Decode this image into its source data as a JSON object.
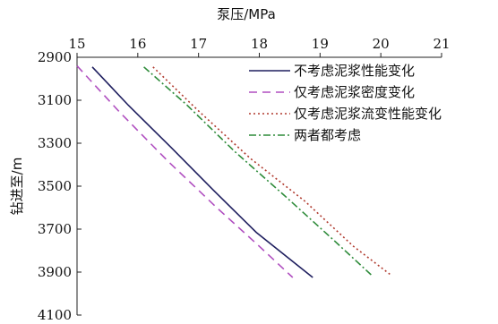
{
  "chart_data": {
    "type": "line",
    "xlabel": "泵压/MPa",
    "ylabel": "钻进至/m",
    "xlim": [
      15,
      21
    ],
    "ylim": [
      2900,
      4100
    ],
    "x_ticks": [
      "15",
      "16",
      "17",
      "18",
      "19",
      "20",
      "21"
    ],
    "y_ticks": [
      "2900",
      "3100",
      "3300",
      "3500",
      "3700",
      "3900",
      "4100"
    ],
    "x_axis_position": "top",
    "y_inverted": true,
    "grid": false,
    "legend_position": "top-right",
    "series": [
      {
        "name": "不考虑泥浆性能变化",
        "color": "#1f1f5f",
        "dash": "solid",
        "points": [
          [
            15.25,
            2945
          ],
          [
            15.85,
            3125
          ],
          [
            16.55,
            3320
          ],
          [
            17.25,
            3520
          ],
          [
            17.95,
            3715
          ],
          [
            18.88,
            3925
          ]
        ]
      },
      {
        "name": "仅考虑泥浆密度变化",
        "color": "#b04fc0",
        "dash": "dashed",
        "points": [
          [
            15.0,
            2940
          ],
          [
            15.7,
            3155
          ],
          [
            16.5,
            3385
          ],
          [
            17.3,
            3600
          ],
          [
            18.0,
            3780
          ],
          [
            18.55,
            3925
          ]
        ]
      },
      {
        "name": "仅考虑泥浆流变性能变化",
        "color": "#b03a2e",
        "dash": "dotted",
        "points": [
          [
            16.25,
            2945
          ],
          [
            17.0,
            3150
          ],
          [
            17.85,
            3370
          ],
          [
            18.75,
            3570
          ],
          [
            19.55,
            3780
          ],
          [
            20.15,
            3910
          ]
        ]
      },
      {
        "name": "两者都考虑",
        "color": "#2e8b3a",
        "dash": "dashdot",
        "points": [
          [
            16.1,
            2945
          ],
          [
            16.8,
            3120
          ],
          [
            17.6,
            3340
          ],
          [
            18.4,
            3540
          ],
          [
            19.2,
            3745
          ],
          [
            19.85,
            3915
          ]
        ]
      }
    ]
  }
}
